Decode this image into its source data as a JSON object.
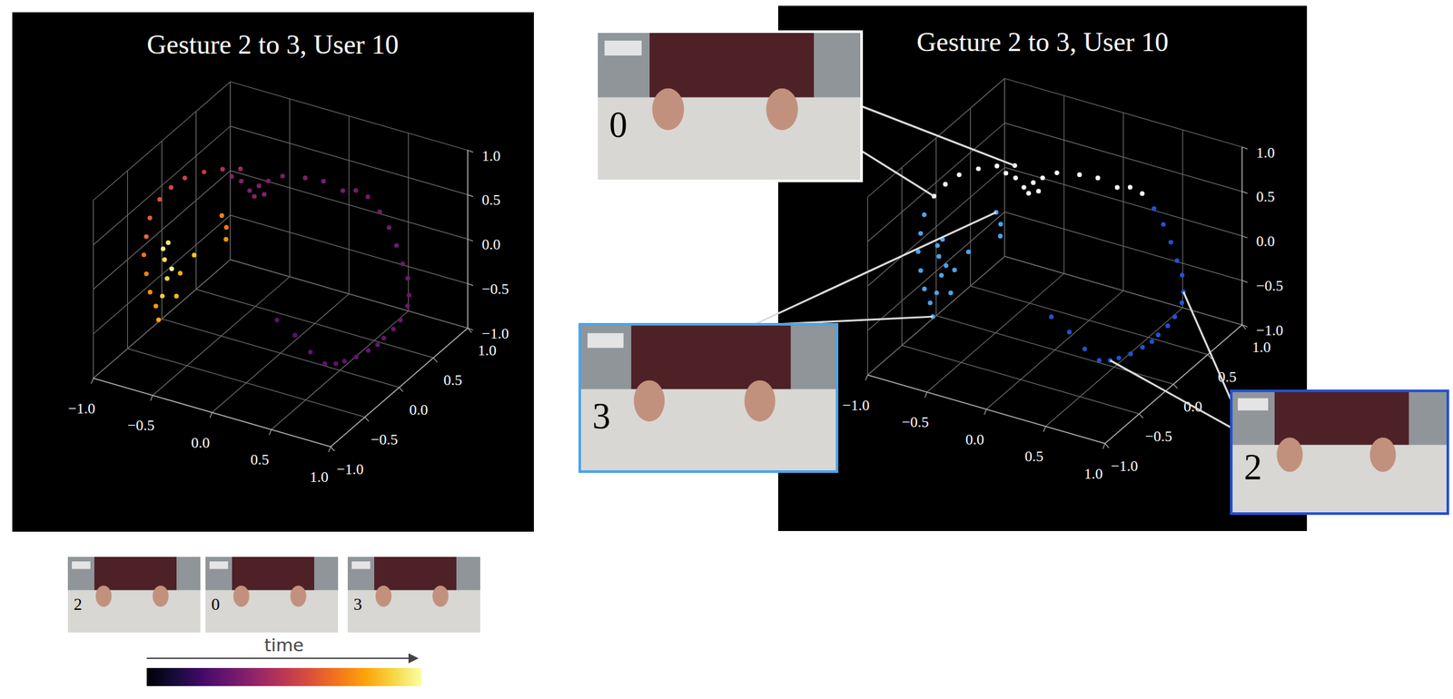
{
  "chart_data": [
    {
      "type": "scatter3d",
      "title": "Gesture 2 to 3, User 10",
      "xlim": [
        -1,
        1
      ],
      "ylim": [
        -1,
        1
      ],
      "zlim": [
        -1,
        1
      ],
      "xticks": [
        {
          "value": -1,
          "label": "−1.0"
        },
        {
          "value": -0.5,
          "label": "−0.5"
        },
        {
          "value": 0,
          "label": "0.0"
        },
        {
          "value": 0.5,
          "label": "0.5"
        },
        {
          "value": 1,
          "label": "1.0"
        }
      ],
      "yticks": [
        {
          "value": -1,
          "label": "−1.0"
        },
        {
          "value": -0.5,
          "label": "−0.5"
        },
        {
          "value": 0,
          "label": "0.0"
        },
        {
          "value": 0.5,
          "label": "0.5"
        },
        {
          "value": 1,
          "label": "1.0"
        }
      ],
      "zticks": [
        {
          "value": -1,
          "label": "−1.0"
        },
        {
          "value": -0.5,
          "label": "−0.5"
        },
        {
          "value": 0,
          "label": "0.0"
        },
        {
          "value": 0.5,
          "label": "0.5"
        },
        {
          "value": 1,
          "label": "1.0"
        }
      ],
      "grid": true,
      "x": [
        0.08,
        0.22,
        0.35,
        0.46,
        0.53,
        0.58,
        0.65,
        0.71,
        0.76,
        0.79,
        0.83,
        0.86,
        0.88,
        0.87,
        0.83,
        0.77,
        0.7,
        0.62,
        0.53,
        0.43,
        0.34,
        0.26,
        0.12,
        0.0,
        -0.15,
        -0.23,
        -0.28,
        -0.33,
        -0.23,
        -0.4,
        -0.29,
        -0.47,
        -0.43,
        -0.54,
        -0.65,
        -0.76,
        -0.83,
        -0.88,
        -0.91,
        -0.9,
        -0.88,
        -0.83,
        -0.77,
        -0.71,
        -0.67,
        -0.69,
        -0.69,
        -0.74,
        -0.75,
        -0.77,
        -0.68,
        -0.41,
        -0.46,
        -0.62,
        -0.56,
        -0.6,
        -0.39
      ],
      "y": [
        -0.19,
        -0.17,
        -0.17,
        -0.15,
        -0.11,
        -0.07,
        -0.02,
        0.05,
        0.1,
        0.14,
        0.21,
        0.26,
        0.33,
        0.37,
        0.42,
        0.45,
        0.48,
        0.51,
        0.53,
        0.53,
        0.51,
        0.46,
        0.42,
        0.36,
        0.29,
        0.22,
        0.17,
        0.12,
        0.16,
        0.12,
        0.12,
        0.1,
        0.16,
        0.09,
        0.01,
        -0.08,
        -0.16,
        -0.24,
        -0.33,
        -0.4,
        -0.47,
        -0.52,
        -0.57,
        -0.59,
        -0.62,
        -0.53,
        -0.46,
        -0.41,
        -0.34,
        -0.38,
        -0.41,
        -0.08,
        -0.06,
        -0.39,
        -0.29,
        -0.48,
        -0.12
      ],
      "z": [
        -0.47,
        -0.6,
        -0.74,
        -0.84,
        -0.84,
        -0.82,
        -0.78,
        -0.73,
        -0.68,
        -0.62,
        -0.55,
        -0.47,
        -0.35,
        -0.26,
        -0.12,
        0.0,
        0.16,
        0.31,
        0.44,
        0.57,
        0.62,
        0.62,
        0.7,
        0.73,
        0.74,
        0.7,
        0.66,
        0.62,
        0.59,
        0.7,
        0.57,
        0.74,
        0.8,
        0.8,
        0.78,
        0.73,
        0.65,
        0.55,
        0.39,
        0.23,
        0.08,
        -0.08,
        -0.23,
        -0.35,
        -0.47,
        -0.27,
        -0.12,
        0.04,
        0.18,
        0.13,
        -0.04,
        0.31,
        0.41,
        -0.08,
        0.08,
        -0.27,
        0.21
      ],
      "time": [
        0.26,
        0.26,
        0.27,
        0.27,
        0.27,
        0.28,
        0.28,
        0.28,
        0.29,
        0.29,
        0.29,
        0.3,
        0.3,
        0.3,
        0.31,
        0.31,
        0.31,
        0.32,
        0.32,
        0.32,
        0.33,
        0.33,
        0.33,
        0.34,
        0.34,
        0.34,
        0.35,
        0.35,
        0.36,
        0.36,
        0.37,
        0.37,
        0.42,
        0.46,
        0.5,
        0.54,
        0.57,
        0.6,
        0.63,
        0.66,
        0.69,
        0.72,
        0.75,
        0.78,
        0.81,
        0.88,
        0.9,
        0.92,
        0.94,
        0.96,
        0.98,
        0.7,
        0.72,
        0.82,
        0.86,
        0.84,
        0.76
      ],
      "colorbar": {
        "label": "time",
        "range": [
          0,
          1
        ]
      },
      "frames": [
        "2",
        "0",
        "3"
      ]
    },
    {
      "type": "scatter3d",
      "title": "Gesture 2 to 3, User 10",
      "xlim": [
        -1,
        1
      ],
      "ylim": [
        -1,
        1
      ],
      "zlim": [
        -1,
        1
      ],
      "xticks": [
        {
          "value": -1,
          "label": "−1.0"
        },
        {
          "value": -0.5,
          "label": "−0.5"
        },
        {
          "value": 0,
          "label": "0.0"
        },
        {
          "value": 0.5,
          "label": "0.5"
        },
        {
          "value": 1,
          "label": "1.0"
        }
      ],
      "yticks": [
        {
          "value": -1,
          "label": "−1.0"
        },
        {
          "value": -0.5,
          "label": "−0.5"
        },
        {
          "value": 0,
          "label": "0.0"
        },
        {
          "value": 0.5,
          "label": "0.5"
        },
        {
          "value": 1,
          "label": "1.0"
        }
      ],
      "zticks": [
        {
          "value": -1,
          "label": "−1.0"
        },
        {
          "value": -0.5,
          "label": "−0.5"
        },
        {
          "value": 0,
          "label": "0.0"
        },
        {
          "value": 0.5,
          "label": "0.5"
        },
        {
          "value": 1,
          "label": "1.0"
        }
      ],
      "grid": true,
      "series": [
        {
          "name": "2",
          "color": "#2251d8",
          "x": [
            0.08,
            0.22,
            0.35,
            0.46,
            0.53,
            0.58,
            0.65,
            0.71,
            0.76,
            0.79,
            0.83,
            0.86,
            0.88,
            0.87,
            0.83,
            0.77,
            0.7,
            0.62,
            0.53
          ],
          "y": [
            -0.19,
            -0.17,
            -0.17,
            -0.15,
            -0.11,
            -0.07,
            -0.02,
            0.05,
            0.1,
            0.14,
            0.21,
            0.26,
            0.33,
            0.37,
            0.42,
            0.45,
            0.48,
            0.51,
            0.53
          ],
          "z": [
            -0.47,
            -0.6,
            -0.74,
            -0.84,
            -0.84,
            -0.82,
            -0.78,
            -0.73,
            -0.68,
            -0.62,
            -0.55,
            -0.47,
            -0.35,
            -0.26,
            -0.12,
            0.0,
            0.16,
            0.31,
            0.44
          ]
        },
        {
          "name": "0",
          "color": "#ffffff",
          "x": [
            0.43,
            0.34,
            0.26,
            0.12,
            0.0,
            -0.15,
            -0.23,
            -0.28,
            -0.33,
            -0.23,
            -0.4,
            -0.29,
            -0.47,
            -0.43,
            -0.54,
            -0.65,
            -0.76,
            -0.83,
            -0.88
          ],
          "y": [
            0.53,
            0.51,
            0.46,
            0.42,
            0.36,
            0.29,
            0.22,
            0.17,
            0.12,
            0.16,
            0.12,
            0.12,
            0.1,
            0.16,
            0.09,
            0.01,
            -0.08,
            -0.16,
            -0.24
          ],
          "z": [
            0.57,
            0.62,
            0.62,
            0.7,
            0.73,
            0.74,
            0.7,
            0.66,
            0.62,
            0.59,
            0.7,
            0.57,
            0.74,
            0.8,
            0.8,
            0.78,
            0.73,
            0.65,
            0.55
          ]
        },
        {
          "name": "3",
          "color": "#4aa4ea",
          "x": [
            -0.91,
            -0.9,
            -0.88,
            -0.83,
            -0.77,
            -0.71,
            -0.67,
            -0.69,
            -0.69,
            -0.74,
            -0.75,
            -0.77,
            -0.68,
            -0.41,
            -0.46,
            -0.62,
            -0.56,
            -0.6,
            -0.39
          ],
          "y": [
            -0.33,
            -0.4,
            -0.47,
            -0.52,
            -0.57,
            -0.59,
            -0.62,
            -0.53,
            -0.46,
            -0.41,
            -0.34,
            -0.38,
            -0.41,
            -0.08,
            -0.06,
            -0.39,
            -0.29,
            -0.48,
            -0.12
          ],
          "z": [
            0.39,
            0.23,
            0.08,
            -0.08,
            -0.23,
            -0.35,
            -0.47,
            -0.27,
            -0.12,
            0.04,
            0.18,
            0.13,
            -0.04,
            0.31,
            0.41,
            -0.08,
            0.08,
            -0.27,
            0.21
          ]
        }
      ]
    }
  ]
}
